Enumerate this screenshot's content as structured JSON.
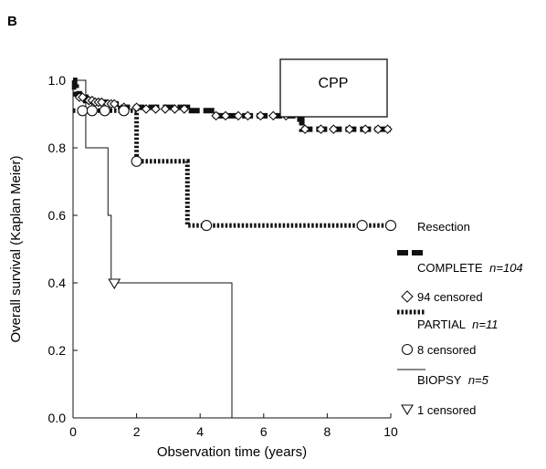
{
  "panel_label": "B",
  "colors": {
    "ink": "#111111",
    "background": "#ffffff"
  },
  "chart_data": {
    "type": "line",
    "title": "",
    "annotation": "CPP",
    "xlabel": "Observation time (years)",
    "ylabel": "Overall survival (Kaplan Meier)",
    "xlim": [
      0,
      10
    ],
    "ylim": [
      0,
      1
    ],
    "x_ticks": [
      0,
      2,
      4,
      6,
      8,
      10
    ],
    "x_tick_labels": [
      "0",
      "2",
      "4",
      "6",
      "8",
      "10"
    ],
    "y_ticks": [
      0,
      0.2,
      0.4,
      0.6,
      0.8,
      1.0
    ],
    "y_tick_labels": [
      "0.0",
      "0.2",
      "0.4",
      "0.6",
      "0.8",
      "1.0"
    ],
    "grid": false,
    "legend_placement": "right",
    "legend_title": "Resection",
    "series": [
      {
        "name": "COMPLETE",
        "n_label": "n=104",
        "line_style": "thick-dash",
        "censor_marker": "diamond",
        "censor_label": "94 censored",
        "steps": [
          [
            0,
            1.0
          ],
          [
            0.05,
            0.98
          ],
          [
            0.1,
            0.96
          ],
          [
            0.2,
            0.95
          ],
          [
            0.4,
            0.94
          ],
          [
            0.6,
            0.935
          ],
          [
            1.0,
            0.93
          ],
          [
            1.5,
            0.92
          ],
          [
            3.6,
            0.91
          ],
          [
            4.5,
            0.895
          ],
          [
            7.0,
            0.885
          ],
          [
            7.2,
            0.855
          ],
          [
            10.0,
            0.855
          ]
        ],
        "censored": [
          [
            0.2,
            0.95
          ],
          [
            0.3,
            0.95
          ],
          [
            0.5,
            0.94
          ],
          [
            0.6,
            0.94
          ],
          [
            0.7,
            0.935
          ],
          [
            0.8,
            0.935
          ],
          [
            0.9,
            0.935
          ],
          [
            1.1,
            0.93
          ],
          [
            1.2,
            0.93
          ],
          [
            1.3,
            0.93
          ],
          [
            1.6,
            0.92
          ],
          [
            2.0,
            0.92
          ],
          [
            2.3,
            0.915
          ],
          [
            2.6,
            0.915
          ],
          [
            2.9,
            0.915
          ],
          [
            3.2,
            0.915
          ],
          [
            3.5,
            0.915
          ],
          [
            4.5,
            0.895
          ],
          [
            4.8,
            0.895
          ],
          [
            5.2,
            0.895
          ],
          [
            5.5,
            0.895
          ],
          [
            5.9,
            0.895
          ],
          [
            6.3,
            0.895
          ],
          [
            6.7,
            0.895
          ],
          [
            7.3,
            0.855
          ],
          [
            7.8,
            0.855
          ],
          [
            8.2,
            0.855
          ],
          [
            8.7,
            0.855
          ],
          [
            9.2,
            0.855
          ],
          [
            9.6,
            0.855
          ],
          [
            9.9,
            0.855
          ]
        ]
      },
      {
        "name": "PARTIAL",
        "n_label": "n=11",
        "line_style": "dotted-thick",
        "censor_marker": "circle",
        "censor_label": "8 censored",
        "steps": [
          [
            0,
            0.91
          ],
          [
            2.0,
            0.91
          ],
          [
            2.0,
            0.76
          ],
          [
            3.6,
            0.76
          ],
          [
            3.6,
            0.57
          ],
          [
            10.0,
            0.57
          ]
        ],
        "censored": [
          [
            0.3,
            0.91
          ],
          [
            0.6,
            0.91
          ],
          [
            1.0,
            0.91
          ],
          [
            1.6,
            0.91
          ],
          [
            2.0,
            0.76
          ],
          [
            4.2,
            0.57
          ],
          [
            9.1,
            0.57
          ],
          [
            10.0,
            0.57
          ]
        ]
      },
      {
        "name": "BIOPSY",
        "n_label": "n=5",
        "line_style": "thin-solid",
        "censor_marker": "triangle-down",
        "censor_label": "1 censored",
        "steps": [
          [
            0,
            1.0
          ],
          [
            0.4,
            1.0
          ],
          [
            0.4,
            0.8
          ],
          [
            1.1,
            0.8
          ],
          [
            1.1,
            0.6
          ],
          [
            1.2,
            0.6
          ],
          [
            1.2,
            0.4
          ],
          [
            5.0,
            0.4
          ],
          [
            5.0,
            0.0
          ]
        ],
        "censored": [
          [
            1.3,
            0.4
          ]
        ]
      }
    ]
  }
}
